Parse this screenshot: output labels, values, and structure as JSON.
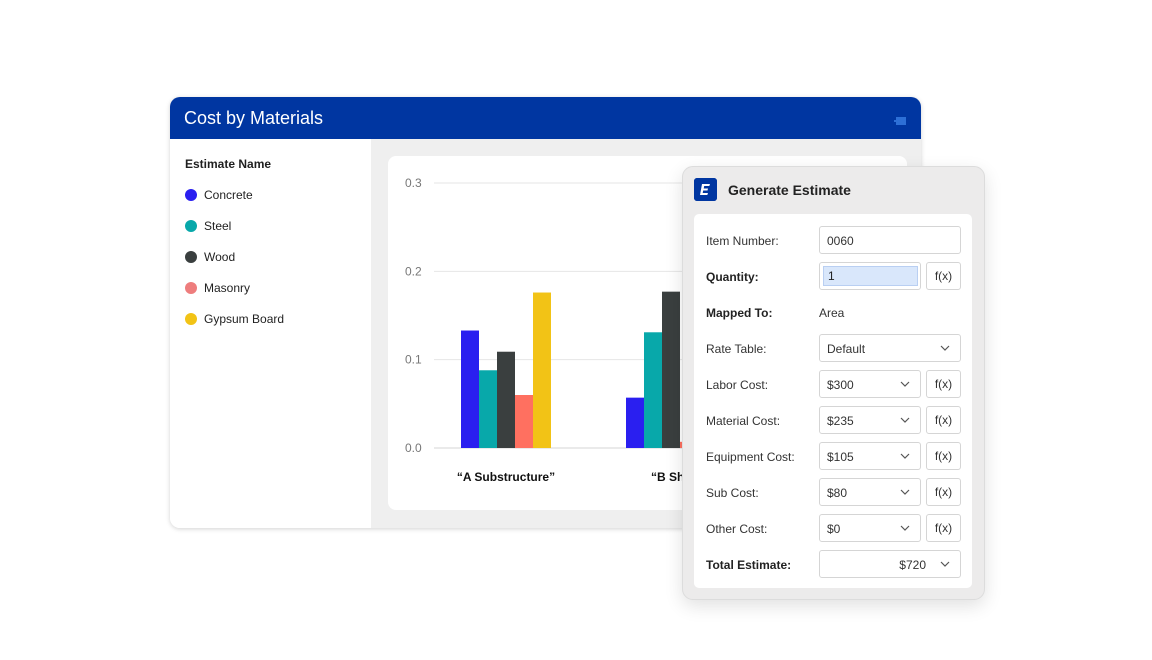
{
  "card": {
    "title": "Cost by Materials",
    "legend_title": "Estimate Name",
    "legend": [
      {
        "label": "Concrete",
        "color": "#2a1ff0"
      },
      {
        "label": "Steel",
        "color": "#08a8aa"
      },
      {
        "label": "Wood",
        "color": "#3a3f3f"
      },
      {
        "label": "Masonry",
        "color": "#ee7d7d"
      },
      {
        "label": "Gypsum Board",
        "color": "#f2c316"
      }
    ]
  },
  "chart_data": {
    "type": "bar",
    "categories": [
      "“A Substructure”",
      "“B She"
    ],
    "series": [
      {
        "name": "Concrete",
        "values": [
          0.133,
          0.057
        ],
        "color": "#2a1ff0"
      },
      {
        "name": "Steel",
        "values": [
          0.088,
          0.131
        ],
        "color": "#08a8aa"
      },
      {
        "name": "Wood",
        "values": [
          0.109,
          0.177
        ],
        "color": "#3a3f3f"
      },
      {
        "name": "Masonry",
        "values": [
          0.06,
          0.007
        ],
        "color": "#ff7060"
      },
      {
        "name": "Gypsum Board",
        "values": [
          0.176,
          null
        ],
        "color": "#f2c316"
      }
    ],
    "yticks": [
      "0.0",
      "0.1",
      "0.2",
      "0.3"
    ],
    "ylim": [
      0,
      0.3
    ],
    "grid": true,
    "legend_placement": "left"
  },
  "dialog": {
    "title": "Generate Estimate",
    "item_number": {
      "label": "Item Number:",
      "value": "0060"
    },
    "quantity": {
      "label": "Quantity:",
      "value": "1",
      "fx": "f(x)"
    },
    "mapped_to": {
      "label": "Mapped To:",
      "value": "Area"
    },
    "rate_table": {
      "label": "Rate Table:",
      "value": "Default"
    },
    "labor_cost": {
      "label": "Labor Cost:",
      "value": "$300",
      "fx": "f(x)"
    },
    "material_cost": {
      "label": "Material Cost:",
      "value": "$235",
      "fx": "f(x)"
    },
    "equipment_cost": {
      "label": "Equipment Cost:",
      "value": "$105",
      "fx": "f(x)"
    },
    "sub_cost": {
      "label": "Sub Cost:",
      "value": "$80",
      "fx": "f(x)"
    },
    "other_cost": {
      "label": "Other Cost:",
      "value": "$0",
      "fx": "f(x)"
    },
    "total_estimate": {
      "label": "Total Estimate:",
      "value": "$720"
    }
  }
}
